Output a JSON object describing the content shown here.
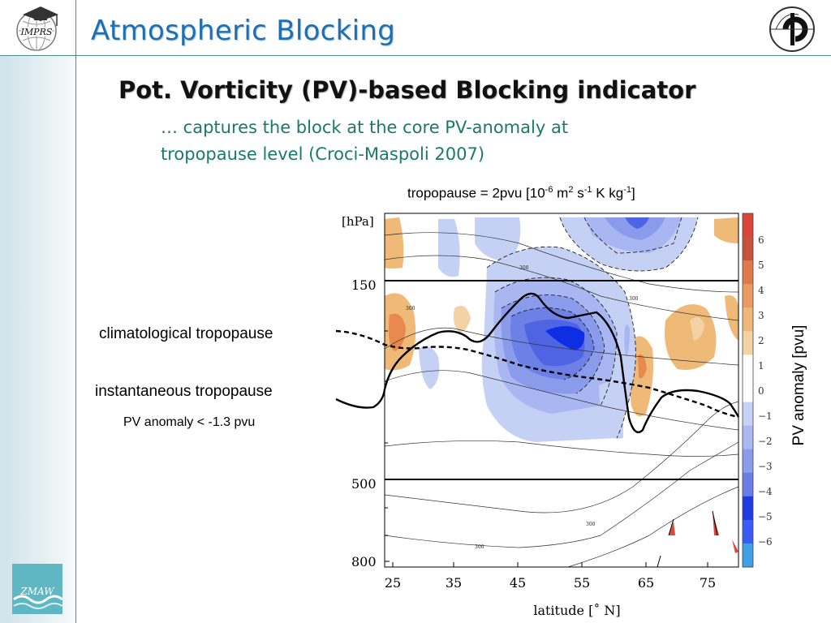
{
  "slide": {
    "title": "Atmospheric Blocking",
    "subtitle": "Pot. Vorticity (PV)-based Blocking indicator",
    "bullet_line1": "… captures the block at the core PV-anomaly at",
    "bullet_line2": "tropopause level (Croci-Maspoli 2007)"
  },
  "logos": {
    "left_text": "IMPRS",
    "bottom_text": "ZMAW"
  },
  "figure": {
    "header": {
      "prefix": "tropopause = 2pvu [10",
      "exp1": "-6",
      "m": " m",
      "exp2": "2",
      "s": " s",
      "exp3": "-1",
      "kkg": " K kg",
      "exp4": "-1",
      "suffix": "]"
    },
    "y_unit": "[hPa]",
    "y_ticks": [
      "150",
      "500",
      "800"
    ],
    "x_ticks": [
      "25",
      "35",
      "45",
      "55",
      "65",
      "75"
    ],
    "x_label": "latitude [˚ N]",
    "contour_labels": [
      "300",
      "300",
      "300",
      "300",
      "300"
    ],
    "colorbar_ticks": [
      "6",
      "5",
      "4",
      "3",
      "2",
      "1",
      "0",
      "−1",
      "−2",
      "−3",
      "−4",
      "−5",
      "−6"
    ],
    "colorbar_label": "PV anomaly [pvu]",
    "colorbar_colors": [
      "#d8463a",
      "#c8533d",
      "#e07a4a",
      "#e89a60",
      "#f0b77c",
      "#f3d3a4",
      "#ffffff",
      "#ffffff",
      "#c7d3f5",
      "#a9b8f0",
      "#8a9ceb",
      "#6a7ee6",
      "#1f3ae0",
      "#3b5bf5",
      "#3fa0e6"
    ],
    "annotations": {
      "climatological": "climatological tropopause",
      "instantaneous": "instantaneous tropopause",
      "pv_threshold": "PV anomaly < -1.3 pvu"
    },
    "colors": {
      "positive_anomaly": "#e8a45a",
      "negative_anomaly": "#4b6ff0",
      "strong_negative": "#0b2ee0",
      "title": "#1f6fb0",
      "bullet": "#1a7a6a"
    }
  }
}
